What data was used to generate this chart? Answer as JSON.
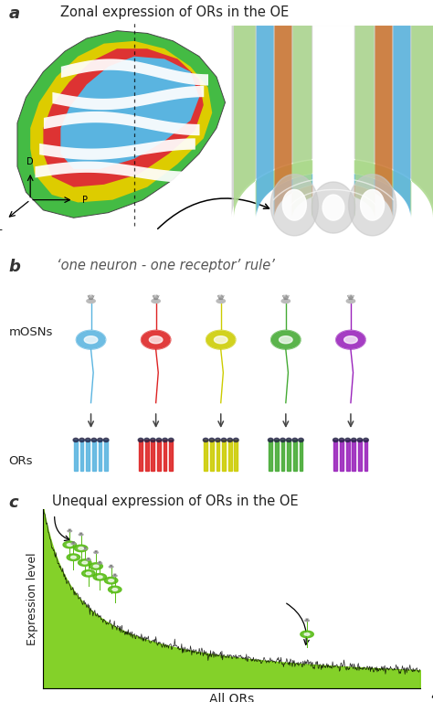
{
  "title_a": "Zonal expression of ORs in the OE",
  "title_b": "‘one neuron - one receptor’ rule’",
  "title_c": "Unequal expression of ORs in the OE",
  "label_mOSNs": "mOSNs",
  "label_ORs": "ORs",
  "xlabel_c": "All ORs",
  "ylabel_c": "Expression level",
  "panel_labels": [
    "a",
    "b",
    "c"
  ],
  "neuron_colors": [
    "#5ab4e0",
    "#dd2222",
    "#cccc00",
    "#44aa33",
    "#9922bb"
  ],
  "zone_colors": [
    "#5ab4e0",
    "#dd3333",
    "#ddcc00",
    "#44bb44"
  ],
  "bg_color": "#ffffff",
  "green_fill": "#77cc11",
  "gray_bone": "#c8c8c8",
  "orange_zone": "#cc7733",
  "light_green_zone": "#aad88a"
}
